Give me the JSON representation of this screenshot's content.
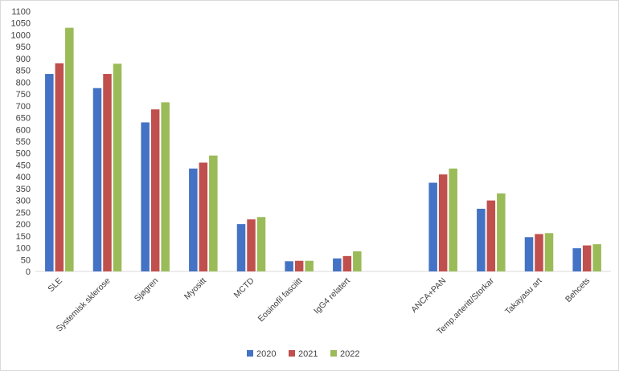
{
  "chart_data": {
    "type": "bar",
    "title": "",
    "xlabel": "",
    "ylabel": "",
    "ylim": [
      0,
      1100
    ],
    "ytick_step": 50,
    "grid": false,
    "legend_position": "bottom",
    "categories": [
      "SLE",
      "Systemisk sklerose",
      "Sjøgren",
      "Myositt",
      "MCTD",
      "Eosinofil fasciitt",
      "IgG4 relatert",
      "",
      "ANCA+PAN",
      "Temp.arteritt/Storkar",
      "Takayasu art",
      "Behcets"
    ],
    "series": [
      {
        "name": "2020",
        "color": "#4472C4",
        "values": [
          835,
          775,
          630,
          435,
          200,
          43,
          55,
          null,
          375,
          265,
          145,
          98
        ]
      },
      {
        "name": "2021",
        "color": "#C0504D",
        "values": [
          880,
          835,
          685,
          460,
          220,
          45,
          65,
          null,
          410,
          300,
          158,
          110
        ]
      },
      {
        "name": "2022",
        "color": "#9BBB59",
        "values": [
          1030,
          878,
          715,
          490,
          230,
          45,
          85,
          null,
          435,
          330,
          162,
          115
        ]
      }
    ]
  }
}
